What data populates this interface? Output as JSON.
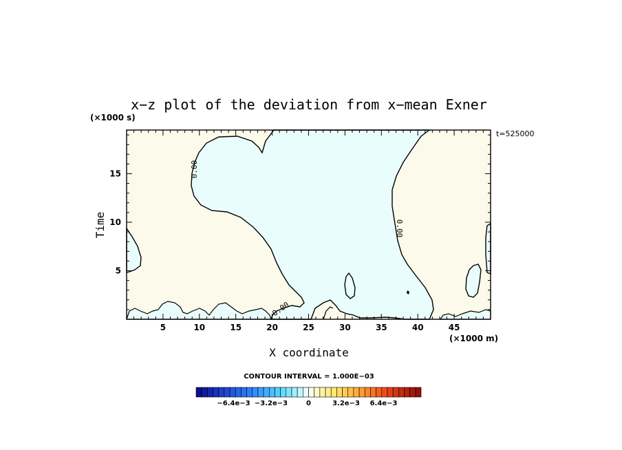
{
  "chart_data": {
    "type": "heatmap",
    "title": "x−z plot of the deviation from x−mean Exner",
    "xlabel": "X coordinate",
    "ylabel": "Time",
    "x_unit": "(×1000 m)",
    "y_unit": "(×1000 s)",
    "time_label": "t=525000",
    "xlim": [
      0,
      50
    ],
    "ylim": [
      0,
      19.5
    ],
    "xticks": [
      5,
      10,
      15,
      20,
      25,
      30,
      35,
      40,
      45
    ],
    "yticks": [
      5,
      10,
      15
    ],
    "contour_label": "0.00",
    "contour_interval": "CONTOUR INTERVAL = 1.000E−03",
    "colorbar_ticks": [
      "−6.4e−3",
      "−3.2e−3",
      "0",
      "3.2e−3",
      "6.4e−3"
    ],
    "colorbar_range": [
      -0.0096,
      0.0096
    ],
    "colors": {
      "positive_fill": "#fcfaea",
      "negative_fill": "#eafdfd"
    }
  }
}
